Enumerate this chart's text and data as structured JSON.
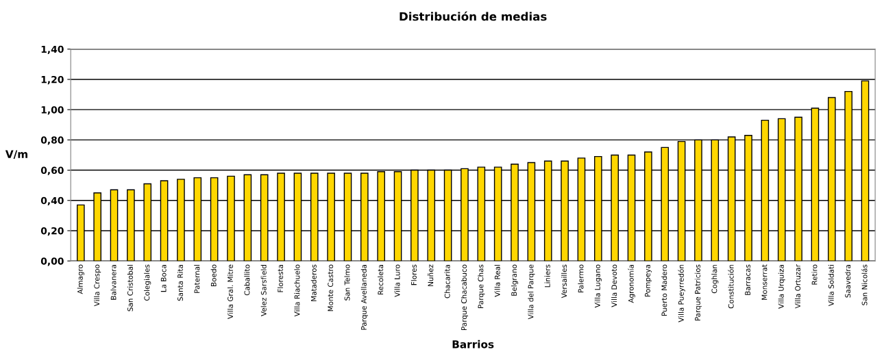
{
  "chart_data": {
    "type": "bar",
    "title": "Distribución de medias",
    "xlabel": "Barrios",
    "ylabel": "V/m",
    "categories": [
      "Almagro",
      "Villa Crespo",
      "Balvanera",
      "San Cristobal",
      "Colegiales",
      "La Boca",
      "Santa Rita",
      "Paternal",
      "Boedo",
      "Villa Gral. Mitre",
      "Caballito",
      "Velez Sarsfield",
      "Floresta",
      "Villa Riachuelo",
      "Mataderos",
      "Monte Castro",
      "San Telmo",
      "Parque Avellaneda",
      "Recoleta",
      "Villa Luro",
      "Flores",
      "Nuñez",
      "Chacarita",
      "Parque Chacabuco",
      "Parque Chas",
      "Villa Real",
      "Belgrano",
      "Villa del Parque",
      "Liniers",
      "Versailles",
      "Palermo",
      "Villa Lugano",
      "Villa Devoto",
      "Agronomía",
      "Pompeya",
      "Puerto Madero",
      "Villa Pueyrredón",
      "Parque Patricios",
      "Coghlan",
      "Constitución",
      "Barracas",
      "Monserrat",
      "Villa Urquiza",
      "Villa Ortuzar",
      "Retiro",
      "Villa Soldati",
      "Saavedra",
      "San Nicolás"
    ],
    "values": [
      0.37,
      0.45,
      0.47,
      0.47,
      0.51,
      0.53,
      0.54,
      0.55,
      0.55,
      0.56,
      0.57,
      0.57,
      0.58,
      0.58,
      0.58,
      0.58,
      0.58,
      0.58,
      0.59,
      0.59,
      0.6,
      0.6,
      0.6,
      0.61,
      0.62,
      0.62,
      0.64,
      0.65,
      0.66,
      0.66,
      0.68,
      0.69,
      0.7,
      0.7,
      0.72,
      0.75,
      0.79,
      0.8,
      0.8,
      0.82,
      0.83,
      0.93,
      0.94,
      0.95,
      1.01,
      1.08,
      1.12,
      1.19
    ],
    "color": "#ffd700",
    "ylim": [
      0,
      1.4
    ],
    "yticks": [
      {
        "value": 0,
        "label": "0,00"
      },
      {
        "value": 0.2,
        "label": "0,20"
      },
      {
        "value": 0.4,
        "label": "0,40"
      },
      {
        "value": 0.6,
        "label": "0,60"
      },
      {
        "value": 0.8,
        "label": "0,80"
      },
      {
        "value": 1.0,
        "label": "1,00"
      },
      {
        "value": 1.2,
        "label": "1,20"
      },
      {
        "value": 1.4,
        "label": "1,40"
      }
    ],
    "grid": "y"
  }
}
